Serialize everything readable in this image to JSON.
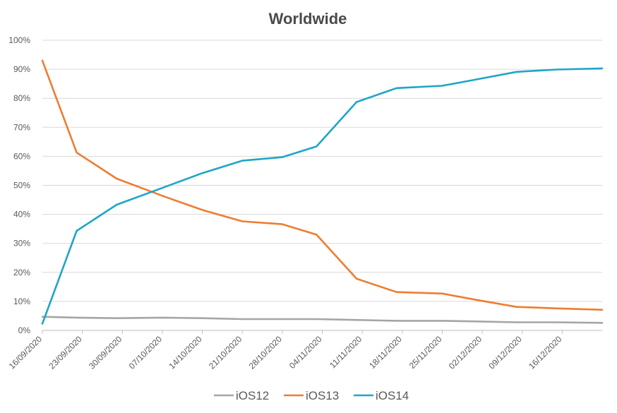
{
  "chart_data": {
    "type": "line",
    "title": "Worldwide",
    "ylim": [
      0,
      100
    ],
    "y_ticks": [
      "0%",
      "10%",
      "20%",
      "30%",
      "40%",
      "50%",
      "60%",
      "70%",
      "80%",
      "90%",
      "100%"
    ],
    "x_ticks": [
      "16/09/2020",
      "23/09/2020",
      "30/09/2020",
      "07/10/2020",
      "14/10/2020",
      "21/10/2020",
      "28/10/2020",
      "04/11/2020",
      "11/11/2020",
      "18/11/2020",
      "25/11/2020",
      "02/12/2020",
      "09/12/2020",
      "16/12/2020"
    ],
    "x_range": [
      "16/09/2020",
      "23/12/2020"
    ],
    "grid": "horizontal",
    "legend_position": "bottom",
    "x": [
      "16/09/2020",
      "22/09/2020",
      "29/09/2020",
      "07/10/2020",
      "14/10/2020",
      "21/10/2020",
      "28/10/2020",
      "03/11/2020",
      "10/11/2020",
      "17/11/2020",
      "25/11/2020",
      "01/12/2020",
      "08/12/2020",
      "15/12/2020",
      "23/12/2020"
    ],
    "series": [
      {
        "name": "iOS12",
        "color": "#a5a5a5",
        "values": [
          4.7,
          4.4,
          4.2,
          4.4,
          4.2,
          3.9,
          3.9,
          3.9,
          3.6,
          3.3,
          3.3,
          3.1,
          2.8,
          2.8,
          2.6
        ]
      },
      {
        "name": "iOS13",
        "color": "#ed7d31",
        "values": [
          93,
          61.3,
          52.3,
          46.4,
          41.5,
          37.6,
          36.6,
          33,
          17.8,
          13.2,
          12.7,
          10.5,
          8.1,
          7.6,
          7.1
        ]
      },
      {
        "name": "iOS14",
        "color": "#1fa5c9",
        "values": [
          2.3,
          34.3,
          43.3,
          49.1,
          54.2,
          58.5,
          59.7,
          63.4,
          78.7,
          83.5,
          84.3,
          86.5,
          89.1,
          89.9,
          90.3
        ]
      }
    ]
  }
}
